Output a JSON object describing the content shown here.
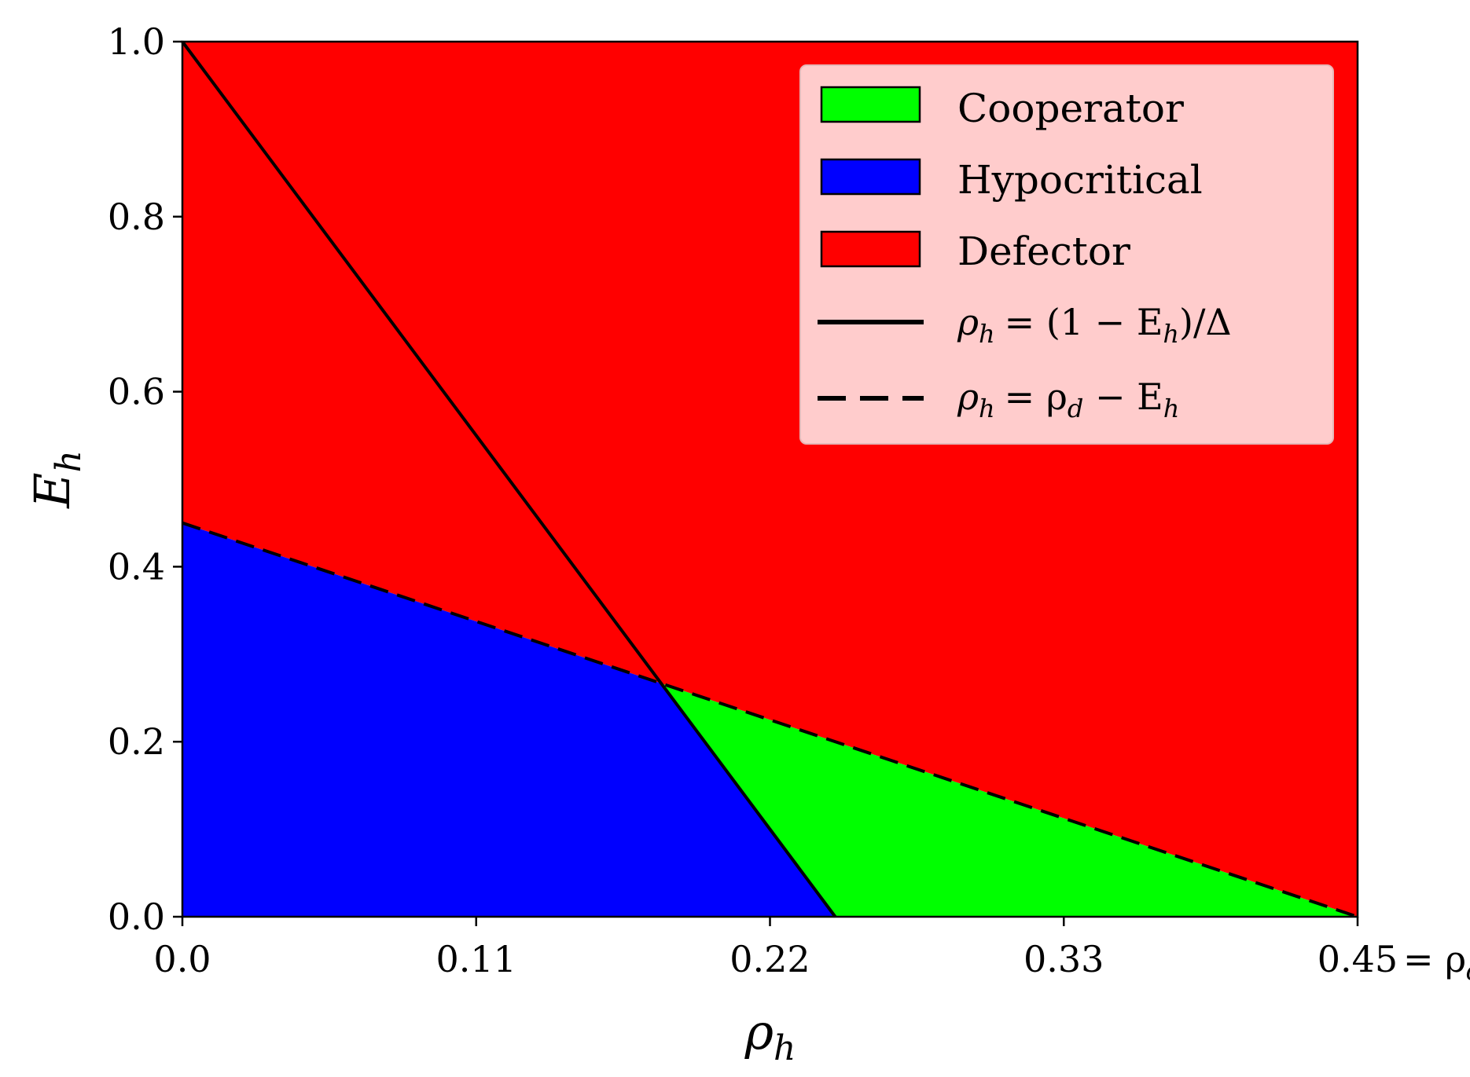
{
  "chart_data": {
    "type": "area",
    "xlabel": "ρ_h",
    "ylabel": "E_h",
    "xlim": [
      0.0,
      0.45
    ],
    "ylim": [
      0.0,
      1.0
    ],
    "x_ticks": [
      {
        "value": 0.0,
        "label": "0.0"
      },
      {
        "value": 0.1125,
        "label": "0.11"
      },
      {
        "value": 0.225,
        "label": "0.22"
      },
      {
        "value": 0.3375,
        "label": "0.33"
      },
      {
        "value": 0.45,
        "label": "0.45"
      }
    ],
    "x_last_tick_suffix": "= ρ_d",
    "y_ticks": [
      {
        "value": 0.0,
        "label": "0.0"
      },
      {
        "value": 0.2,
        "label": "0.2"
      },
      {
        "value": 0.4,
        "label": "0.4"
      },
      {
        "value": 0.6,
        "label": "0.6"
      },
      {
        "value": 0.8,
        "label": "0.8"
      },
      {
        "value": 1.0,
        "label": "1.0"
      }
    ],
    "regions": [
      {
        "name": "Defector",
        "color": "#ff0000",
        "polygon": [
          [
            0.0,
            0.45
          ],
          [
            0.0,
            1.0
          ],
          [
            0.45,
            1.0
          ],
          [
            0.45,
            0.0
          ]
        ]
      },
      {
        "name": "Hypocritical",
        "color": "#0000ff",
        "polygon": [
          [
            0.0,
            0.0
          ],
          [
            0.0,
            0.45
          ],
          [
            0.184,
            0.266
          ],
          [
            0.25,
            0.0
          ]
        ]
      },
      {
        "name": "Cooperator",
        "color": "#00ff00",
        "polygon": [
          [
            0.184,
            0.266
          ],
          [
            0.25,
            0.0
          ],
          [
            0.45,
            0.0
          ]
        ]
      }
    ],
    "lines": [
      {
        "name": "ρ_h = (1 − E_h)/Δ",
        "style": "solid",
        "color": "#000000",
        "points": [
          [
            0.0,
            1.0
          ],
          [
            0.25,
            0.0
          ]
        ]
      },
      {
        "name": "ρ_h = ρ_d − E_h",
        "style": "dashed",
        "color": "#000000",
        "points": [
          [
            0.0,
            0.45
          ],
          [
            0.45,
            0.0
          ]
        ]
      }
    ],
    "legend": {
      "placement": "top-right",
      "patches": [
        {
          "label": "Cooperator",
          "color": "#00ff00"
        },
        {
          "label": "Hypocritical",
          "color": "#0000ff"
        },
        {
          "label": "Defector",
          "color": "#ff0000"
        }
      ],
      "lines": [
        {
          "style": "solid",
          "lhs": "ρ",
          "lhs_sub": "h",
          "rhs": "= (1 − E",
          "rhs_sub": "h",
          "rhs_tail": ")/Δ"
        },
        {
          "style": "dashed",
          "lhs": "ρ",
          "lhs_sub": "h",
          "rhs": "= ρ",
          "rhs_sub": "d",
          "rhs_mid": " − E",
          "rhs_sub2": "h"
        }
      ]
    },
    "grid": false
  }
}
